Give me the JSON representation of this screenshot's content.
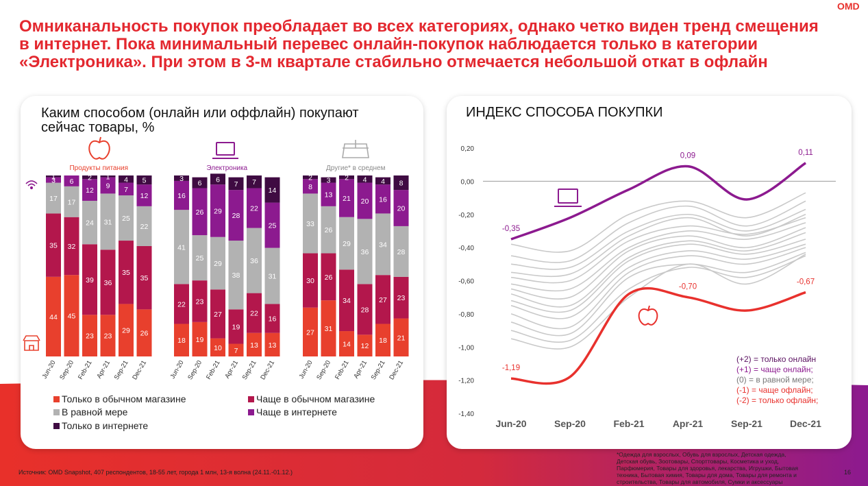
{
  "logo": "OMD",
  "title": [
    "Омниканальность покупок преобладает во всех категориях, однако четко виден тренд смещения",
    "в интернет. Пока минимальный перевес онлайн-покупок наблюдается только в категории",
    "«Электроника». При этом в 3-м квартале стабильно отмечается небольшой откат в офлайн"
  ],
  "chart_data": [
    {
      "type": "stacked_bar",
      "title": [
        "Каким способом (онлайн или оффлайн) покупают",
        "сейчас товары, %"
      ],
      "categories": [
        "Jun-20",
        "Sep-20",
        "Feb-21",
        "Apr-21",
        "Sep-21",
        "Dec-21"
      ],
      "ylim": [
        0,
        100
      ],
      "legend": [
        {
          "name": "Только в обычном магазине",
          "color": "#e8402d"
        },
        {
          "name": "Чаще в обычном магазине",
          "color": "#b3174c"
        },
        {
          "name": "В равной мере",
          "color": "#b2b2b2"
        },
        {
          "name": "Чаще в интернете",
          "color": "#8c1a8f"
        },
        {
          "name": "Только в интернете",
          "color": "#3f0b42"
        }
      ],
      "groups": [
        {
          "name": "Продукты питания",
          "color": "#e8402d",
          "series": [
            {
              "values": [
                44,
                45,
                23,
                23,
                29,
                26
              ]
            },
            {
              "values": [
                35,
                32,
                39,
                36,
                35,
                35
              ]
            },
            {
              "values": [
                17,
                17,
                24,
                31,
                25,
                22
              ]
            },
            {
              "values": [
                3,
                6,
                12,
                9,
                7,
                12
              ]
            },
            {
              "values": [
                1,
                0,
                2,
                1,
                4,
                5
              ]
            }
          ]
        },
        {
          "name": "Электроника",
          "color": "#8c1a8f",
          "series": [
            {
              "values": [
                18,
                19,
                10,
                7,
                13,
                13
              ]
            },
            {
              "values": [
                22,
                23,
                27,
                19,
                22,
                16
              ]
            },
            {
              "values": [
                41,
                25,
                29,
                38,
                36,
                31
              ]
            },
            {
              "values": [
                16,
                26,
                29,
                28,
                22,
                25
              ]
            },
            {
              "values": [
                3,
                6,
                6,
                7,
                7,
                14
              ]
            }
          ]
        },
        {
          "name": "Другие* в среднем",
          "color": "#8a8a8a",
          "series": [
            {
              "values": [
                27,
                31,
                14,
                12,
                18,
                21
              ]
            },
            {
              "values": [
                30,
                26,
                34,
                28,
                27,
                23
              ]
            },
            {
              "values": [
                33,
                26,
                29,
                36,
                34,
                28
              ]
            },
            {
              "values": [
                8,
                13,
                21,
                20,
                16,
                20
              ]
            },
            {
              "values": [
                2,
                3,
                2,
                4,
                4,
                8
              ]
            }
          ]
        }
      ]
    },
    {
      "type": "line",
      "title": "ИНДЕКС СПОСОБА ПОКУПКИ",
      "categories": [
        "Jun-20",
        "Sep-20",
        "Feb-21",
        "Apr-21",
        "Sep-21",
        "Dec-21"
      ],
      "ylim": [
        -1.4,
        0.2
      ],
      "yticks": [
        {
          "value": 0.2,
          "label": "0,20"
        },
        {
          "value": 0,
          "label": "0,00"
        },
        {
          "value": -0.2,
          "label": "-0,20"
        },
        {
          "value": -0.4,
          "label": "-0,40"
        },
        {
          "value": -0.6,
          "label": "-0,60"
        },
        {
          "value": -0.8,
          "label": "-0,80"
        },
        {
          "value": -1,
          "label": "-1,00"
        },
        {
          "value": -1.2,
          "label": "-1,20"
        },
        {
          "value": -1.4,
          "label": "-1,40"
        }
      ],
      "series": [
        {
          "color": "#c9c9c9",
          "values": [
            -0.38,
            -0.42,
            -0.2,
            -0.12,
            -0.22,
            -0.07
          ]
        },
        {
          "color": "#c9c9c9",
          "values": [
            -0.45,
            -0.48,
            -0.25,
            -0.15,
            -0.27,
            -0.12
          ]
        },
        {
          "color": "#c9c9c9",
          "values": [
            -0.5,
            -0.52,
            -0.3,
            -0.2,
            -0.3,
            -0.17
          ]
        },
        {
          "color": "#c9c9c9",
          "values": [
            -0.55,
            -0.56,
            -0.33,
            -0.22,
            -0.33,
            -0.2
          ]
        },
        {
          "color": "#c9c9c9",
          "values": [
            -0.58,
            -0.6,
            -0.36,
            -0.27,
            -0.32,
            -0.22
          ]
        },
        {
          "color": "#c9c9c9",
          "values": [
            -0.62,
            -0.65,
            -0.4,
            -0.3,
            -0.35,
            -0.25
          ]
        },
        {
          "color": "#c9c9c9",
          "values": [
            -0.65,
            -0.7,
            -0.42,
            -0.33,
            -0.4,
            -0.28
          ]
        },
        {
          "color": "#c9c9c9",
          "values": [
            -0.68,
            -0.75,
            -0.46,
            -0.36,
            -0.42,
            -0.31
          ]
        },
        {
          "color": "#c9c9c9",
          "values": [
            -0.72,
            -0.78,
            -0.48,
            -0.38,
            -0.44,
            -0.35
          ]
        },
        {
          "color": "#c9c9c9",
          "values": [
            -0.75,
            -0.82,
            -0.52,
            -0.42,
            -0.47,
            -0.38
          ]
        },
        {
          "color": "#c9c9c9",
          "values": [
            -0.8,
            -0.88,
            -0.55,
            -0.45,
            -0.5,
            -0.4
          ]
        },
        {
          "color": "#c9c9c9",
          "values": [
            -0.85,
            -0.92,
            -0.58,
            -0.5,
            -0.55,
            -0.43
          ]
        },
        {
          "color": "#c9c9c9",
          "values": [
            -0.9,
            -0.96,
            -0.65,
            -0.52,
            -0.58,
            -0.45
          ]
        },
        {
          "color": "#c9c9c9",
          "values": [
            -0.95,
            -1.0,
            -0.7,
            -0.5,
            -0.62,
            -0.44
          ]
        },
        {
          "color": "#8c1a8f",
          "values": [
            -0.35,
            -0.22,
            -0.05,
            0.09,
            -0.11,
            0.11
          ],
          "value_labels": [
            "-0,35",
            null,
            null,
            "0,09",
            null,
            "0,11"
          ]
        },
        {
          "color": "#e8312d",
          "values": [
            -1.19,
            -1.18,
            -0.68,
            -0.7,
            -0.78,
            -0.67
          ],
          "value_labels": [
            "-1,19",
            null,
            null,
            "-0,70",
            null,
            "-0,67"
          ]
        }
      ],
      "annotations": [
        {
          "text": "(+2) = только онлайн",
          "color": "#5a1060"
        },
        {
          "text": "(+1) = чаще онлайн;",
          "color": "#8c1a8f"
        },
        {
          "text": "(0) = в равной мере;",
          "color": "#777777"
        },
        {
          "text": "(-1) = чаще офлайн;",
          "color": "#e8312d"
        },
        {
          "text": "(-2) = только офлайн;",
          "color": "#e8312d"
        }
      ]
    }
  ],
  "footnote": [
    "*Одежда для взрослых, Обувь для взрослых, Детская одежда,",
    "Детская обувь, Зоотовары, Спорттовары, Косметика и уход,",
    "Парфюмерия, Товары для здоровья, лекарства, Игрушки, Бытовая",
    "техника, Бытовая химия, Товары для дома, Товары для ремонта и",
    "строительства, Товары для автомобиля, Сумки и аксессуары"
  ],
  "source": "Источник: OMD Snapshot, 407 респондентов, 18-55 лет, города 1 млн, 13-я волна (24.11.-01.12.)",
  "page_number": "16"
}
